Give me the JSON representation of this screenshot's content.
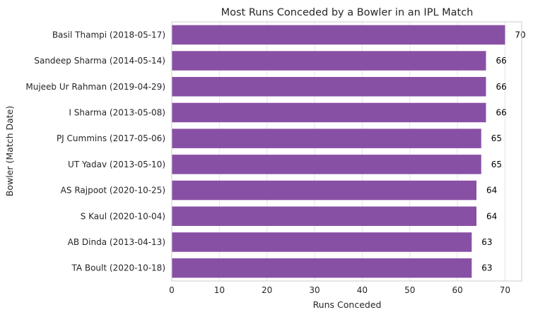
{
  "chart_data": {
    "type": "bar",
    "orientation": "horizontal",
    "title": "Most Runs Conceded by a Bowler in an IPL Match",
    "xlabel": "Runs Conceded",
    "ylabel": "Bowler (Match Date)",
    "categories": [
      "Basil Thampi (2018-05-17)",
      "Sandeep Sharma (2014-05-14)",
      "Mujeeb Ur Rahman (2019-04-29)",
      "I Sharma (2013-05-08)",
      "PJ Cummins (2017-05-06)",
      "UT Yadav (2013-05-10)",
      "AS Rajpoot (2020-10-25)",
      "S Kaul (2020-10-04)",
      "AB Dinda (2013-04-13)",
      "TA Boult (2020-10-18)"
    ],
    "values": [
      70,
      66,
      66,
      66,
      65,
      65,
      64,
      64,
      63,
      63
    ],
    "data_labels": [
      "70",
      "66",
      "66",
      "66",
      "65",
      "65",
      "64",
      "64",
      "63",
      "63"
    ],
    "xticks": [
      "0",
      "10",
      "20",
      "30",
      "40",
      "50",
      "60",
      "70"
    ],
    "xlim": [
      0,
      73.5
    ],
    "grid": true,
    "bar_color": "#8850a5"
  }
}
